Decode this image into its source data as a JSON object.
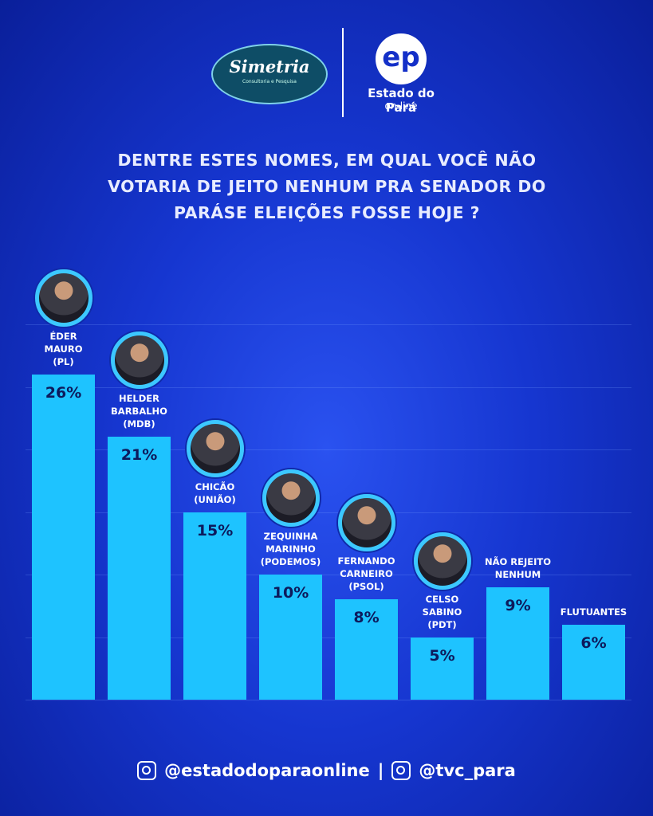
{
  "header": {
    "brand": "Simetria",
    "brand_sub": "Consultoria e Pesquisa",
    "partner": "Estado do Pará",
    "partner_sub": "on-line"
  },
  "chart_data": {
    "type": "bar",
    "title": "DENTRE ESTES NOMES, EM QUAL VOCÊ NÃO VOTARIA DE JEITO NENHUM PRA SENADOR DO PARÁSE ELEIÇÕES FOSSE HOJE ?",
    "categories": [
      "ÉDER\nMAURO\n(PL)",
      "HELDER\nBARBALHO\n(MDB)",
      "CHICÃO\n(UNIÃO)",
      "ZEQUINHA\nMARINHO\n(PODEMOS)",
      "FERNANDO\nCARNEIRO\n(PSOL)",
      "CELSO\nSABINO\n(PDT)",
      "NÃO REJEITO\nNENHUM",
      "FLUTUANTES"
    ],
    "values": [
      26,
      21,
      15,
      10,
      8,
      5,
      9,
      6
    ],
    "value_labels": [
      "26%",
      "21%",
      "15%",
      "10%",
      "8%",
      "5%",
      "9%",
      "6%"
    ],
    "color": "#1ec3ff",
    "ylim": [
      0,
      30
    ],
    "yticks": [
      0,
      5,
      10,
      15,
      20,
      25,
      30
    ],
    "grid": true
  },
  "footer": {
    "handle_1": "@estadodoparaonline",
    "separator": "|",
    "handle_2": "@tvc_para"
  }
}
